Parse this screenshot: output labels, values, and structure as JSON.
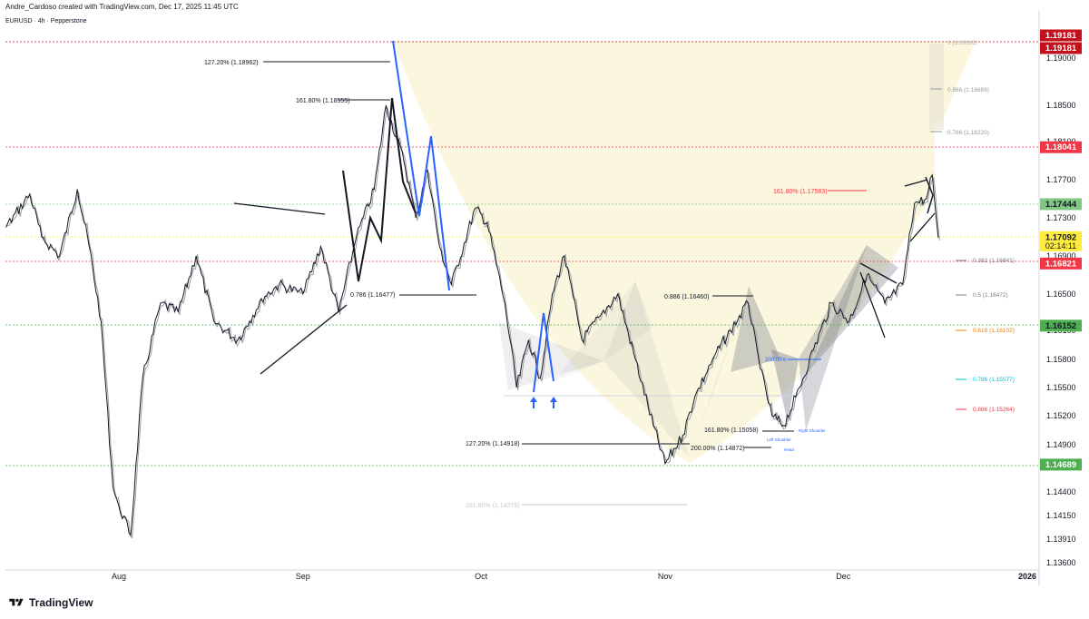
{
  "header": {
    "credit": "Andre_Cardoso created with TradingView.com, Dec 17, 2025 11:45 UTC",
    "symbol": "EURUSD · 4h · Pepperstone"
  },
  "footer": {
    "brand": "TradingView",
    "logo_icon": "tradingview-logo-icon"
  },
  "colors": {
    "price_line": "#131722",
    "shadow_line": "#9aa0a6",
    "trend_blue": "#2962ff",
    "cup_fill": "#fbf6dc",
    "pattern_fill": "#787b86",
    "red_label": "#f23645",
    "dark_red_label": "#c2111b",
    "green_label": "#4caf50",
    "light_green_label": "#81c784",
    "yellow_label": "#ffeb3b"
  },
  "chart_data": {
    "type": "line",
    "title": "EURUSD · 4h · Pepperstone",
    "xlabel": "",
    "ylabel": "",
    "x_tick_labels": [
      "Aug",
      "Sep",
      "Oct",
      "Nov",
      "Dec",
      "2026"
    ],
    "y_tick_labels": [
      "1.19000",
      "1.18500",
      "1.18100",
      "1.17700",
      "1.17300",
      "1.16900",
      "1.16500",
      "1.16100",
      "1.15800",
      "1.15500",
      "1.15200",
      "1.14900",
      "1.14400",
      "1.14150",
      "1.13910",
      "1.13600"
    ],
    "ylim": [
      1.1345,
      1.1935
    ],
    "grid": false,
    "series": [
      {
        "x": [
          "2025-07-02",
          "2025-07-06",
          "2025-07-09",
          "2025-07-13",
          "2025-07-17",
          "2025-07-19",
          "2025-07-22",
          "2025-07-25",
          "2025-07-27",
          "2025-07-29",
          "2025-07-31",
          "2025-08-01",
          "2025-08-03",
          "2025-08-05",
          "2025-08-08",
          "2025-08-11",
          "2025-08-14",
          "2025-08-17",
          "2025-08-21",
          "2025-08-23",
          "2025-08-25",
          "2025-08-28",
          "2025-09-01",
          "2025-09-04",
          "2025-09-07",
          "2025-09-10",
          "2025-09-13",
          "2025-09-15",
          "2025-09-18",
          "2025-09-20",
          "2025-09-22",
          "2025-09-24",
          "2025-09-26",
          "2025-09-30",
          "2025-10-02",
          "2025-10-05",
          "2025-10-07",
          "2025-10-09",
          "2025-10-11",
          "2025-10-13",
          "2025-10-15",
          "2025-10-18",
          "2025-10-21",
          "2025-10-24",
          "2025-10-27",
          "2025-10-30",
          "2025-11-01",
          "2025-11-04",
          "2025-11-06",
          "2025-11-09",
          "2025-11-12",
          "2025-11-15",
          "2025-11-17",
          "2025-11-19",
          "2025-11-21",
          "2025-11-23",
          "2025-11-26",
          "2025-11-29",
          "2025-12-02",
          "2025-12-05",
          "2025-12-08",
          "2025-12-11",
          "2025-12-13",
          "2025-12-15",
          "2025-12-16",
          "2025-12-17"
        ],
        "values": [
          1.1675,
          1.166,
          1.17,
          1.172,
          1.1755,
          1.171,
          1.169,
          1.176,
          1.17,
          1.162,
          1.1445,
          1.1425,
          1.1395,
          1.156,
          1.164,
          1.163,
          1.169,
          1.162,
          1.16,
          1.162,
          1.1645,
          1.166,
          1.165,
          1.17,
          1.163,
          1.171,
          1.176,
          1.185,
          1.179,
          1.173,
          1.178,
          1.17,
          1.166,
          1.174,
          1.1725,
          1.164,
          1.155,
          1.16,
          1.156,
          1.165,
          1.169,
          1.16,
          1.1625,
          1.165,
          1.158,
          1.151,
          1.147,
          1.15,
          1.154,
          1.158,
          1.161,
          1.164,
          1.157,
          1.152,
          1.151,
          1.154,
          1.159,
          1.164,
          1.162,
          1.167,
          1.164,
          1.166,
          1.1745,
          1.175,
          1.1775,
          1.1709
        ]
      }
    ],
    "price_labels": [
      {
        "price": "1.19181",
        "color": "#c2111b",
        "text_color": "#ffffff"
      },
      {
        "price": "1.19181",
        "color": "#c2111b",
        "text_color": "#ffffff"
      },
      {
        "price": "1.18041",
        "color": "#f23645",
        "text_color": "#ffffff"
      },
      {
        "price": "1.17444",
        "color": "#81c784",
        "text_color": "#131722"
      },
      {
        "price": "1.17092",
        "color": "#ffeb3b",
        "text_color": "#131722",
        "countdown": "02:14:11"
      },
      {
        "price": "1.16821",
        "color": "#f23645",
        "text_color": "#ffffff"
      },
      {
        "price": "1.16152",
        "color": "#4caf50",
        "text_color": "#131722"
      },
      {
        "price": "1.14689",
        "color": "#4caf50",
        "text_color": "#ffffff"
      }
    ],
    "annotations": [
      {
        "text": "127.20% (1.18962)",
        "color": "#131722"
      },
      {
        "text": "161.80% (1.18555)",
        "color": "#131722"
      },
      {
        "text": "0.786 (1.16477)",
        "color": "#131722"
      },
      {
        "text": "0.886 (1.16460)",
        "color": "#131722"
      },
      {
        "text": "161.80% (1.17583)",
        "color": "#f23645"
      },
      {
        "text": "1 (1.19181)",
        "color": "#b0b3b8"
      },
      {
        "text": "0.886 (1.18669)",
        "color": "#9598a1"
      },
      {
        "text": "0.786 (1.18220)",
        "color": "#9598a1"
      },
      {
        "text": "0.382 (1.16841)",
        "color": "#787b86"
      },
      {
        "text": "0.5 (1.16472)",
        "color": "#787b86"
      },
      {
        "text": "0.618 (1.16102)",
        "color": "#f57c00"
      },
      {
        "text": "0.786 (1.15577)",
        "color": "#00bcd4"
      },
      {
        "text": "0.886 (1.15264)",
        "color": "#f23645"
      },
      {
        "text": "127.20% (1.14918)",
        "color": "#131722"
      },
      {
        "text": "200.00% (1.14872)",
        "color": "#131722"
      },
      {
        "text": "161.80% (1.15058)",
        "color": "#131722"
      },
      {
        "text": "161.80% (1.14275)",
        "color": "#c7c9cc"
      },
      {
        "text": "200.00%",
        "color": "#2962ff"
      },
      {
        "text": "Right Shoulder",
        "color": "#2962ff"
      },
      {
        "text": "Left Shoulder",
        "color": "#2962ff"
      },
      {
        "text": "Head",
        "color": "#2962ff"
      }
    ]
  }
}
